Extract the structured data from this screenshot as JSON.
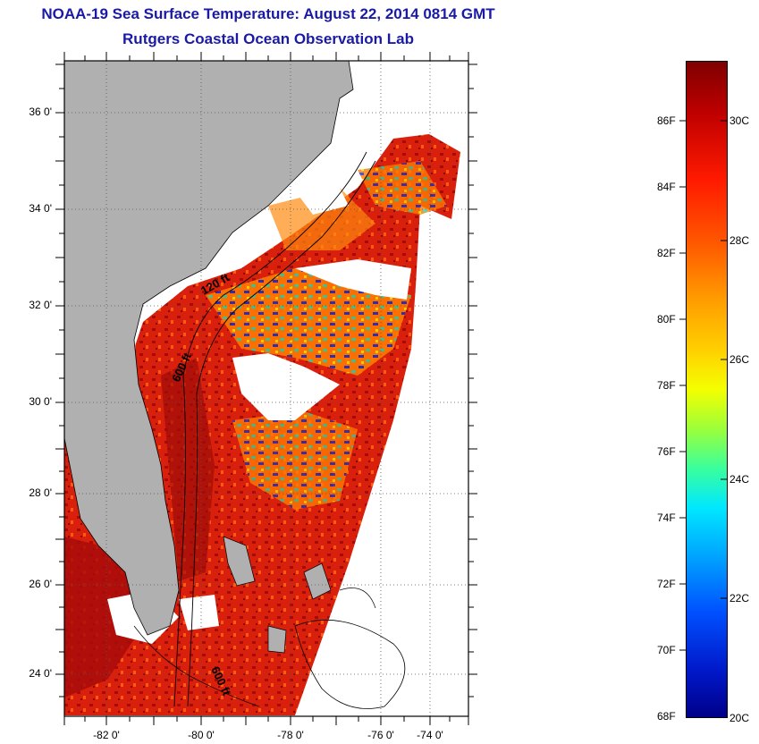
{
  "title_line1": "NOAA-19 Sea Surface Temperature:  August 22, 2014 0814 GMT",
  "title_line2": "Rutgers Coastal Ocean Observation Lab",
  "lat_labels": [
    "36 0'",
    "34 0'",
    "32 0'",
    "30 0'",
    "28 0'",
    "26 0'",
    "24 0'"
  ],
  "lon_labels": [
    "-82 0'",
    "-80 0'",
    "-78 0'",
    "-76 0'",
    "-74 0'"
  ],
  "contour_labels": [
    "120 ft",
    "600 ft",
    "600 ft"
  ],
  "colorbar": {
    "fahrenheit_labels": [
      "86F",
      "84F",
      "82F",
      "80F",
      "78F",
      "76F",
      "74F",
      "72F",
      "70F",
      "68F"
    ],
    "celsius_labels": [
      "30C",
      "28C",
      "26C",
      "24C",
      "22C",
      "20C"
    ],
    "min_f": 68,
    "max_f": 87.8,
    "min_c": 20,
    "max_c": 31
  },
  "colors": {
    "title": "#1a1aa6",
    "land": "#b0b0b0",
    "cloud": "#ffffff",
    "sst_warm": "#e0200a",
    "sst_hot": "#9a0a08",
    "sst_cool": "#1a30c8"
  }
}
